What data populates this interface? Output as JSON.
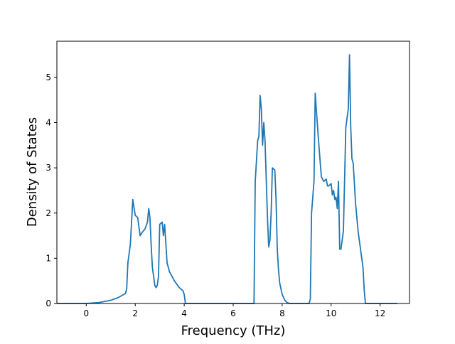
{
  "chart_data": {
    "type": "line",
    "title": "",
    "xlabel": "Frequency (THz)",
    "ylabel": "Density of States",
    "xlim": [
      -1.2,
      13.2
    ],
    "ylim": [
      0,
      5.8
    ],
    "x_ticks": [
      0,
      2,
      4,
      6,
      8,
      10,
      12
    ],
    "y_ticks": [
      0,
      1,
      2,
      3,
      4,
      5
    ],
    "grid": false,
    "legend": "none",
    "series": [
      {
        "color": "#1f77b4",
        "x": [
          -1.2,
          0.0,
          0.5,
          1.0,
          1.3,
          1.6,
          1.65,
          1.7,
          1.8,
          1.85,
          1.9,
          2.0,
          2.1,
          2.15,
          2.2,
          2.25,
          2.4,
          2.5,
          2.55,
          2.6,
          2.65,
          2.7,
          2.8,
          2.85,
          2.9,
          2.95,
          3.0,
          3.1,
          3.15,
          3.2,
          3.3,
          3.4,
          3.6,
          3.8,
          3.95,
          4.0,
          4.05,
          5.0,
          6.0,
          6.85,
          6.9,
          7.0,
          7.05,
          7.1,
          7.15,
          7.2,
          7.25,
          7.3,
          7.4,
          7.45,
          7.5,
          7.55,
          7.6,
          7.7,
          7.75,
          7.8,
          7.85,
          7.9,
          8.0,
          8.1,
          8.2,
          8.3,
          8.5,
          9.1,
          9.15,
          9.2,
          9.3,
          9.35,
          9.4,
          9.5,
          9.6,
          9.7,
          9.8,
          9.85,
          9.9,
          10.0,
          10.05,
          10.1,
          10.15,
          10.2,
          10.25,
          10.3,
          10.35,
          10.4,
          10.5,
          10.6,
          10.65,
          10.7,
          10.75,
          10.8,
          10.85,
          10.9,
          11.0,
          11.1,
          11.2,
          11.3,
          11.35,
          11.4,
          11.5,
          12.0,
          12.7
        ],
        "values": [
          0.0,
          0.0,
          0.02,
          0.07,
          0.13,
          0.22,
          0.32,
          0.9,
          1.3,
          1.8,
          2.3,
          1.95,
          1.9,
          1.7,
          1.5,
          1.55,
          1.65,
          1.8,
          2.1,
          1.9,
          1.3,
          0.8,
          0.4,
          0.35,
          0.4,
          0.6,
          1.75,
          1.8,
          1.5,
          1.75,
          0.9,
          0.7,
          0.5,
          0.35,
          0.28,
          0.2,
          0.0,
          0.0,
          0.0,
          0.0,
          2.7,
          3.6,
          3.7,
          4.6,
          4.3,
          3.5,
          4.0,
          3.6,
          1.9,
          1.25,
          1.4,
          2.0,
          3.0,
          2.95,
          2.3,
          1.2,
          0.75,
          0.45,
          0.2,
          0.08,
          0.02,
          0.0,
          0.0,
          0.0,
          0.1,
          2.0,
          2.7,
          4.65,
          4.25,
          3.5,
          2.8,
          2.7,
          2.75,
          2.6,
          2.6,
          2.65,
          2.4,
          2.5,
          2.3,
          2.35,
          2.1,
          2.7,
          1.2,
          1.2,
          1.6,
          3.9,
          4.1,
          4.3,
          5.5,
          3.9,
          3.2,
          3.1,
          2.2,
          1.6,
          1.2,
          0.8,
          0.3,
          0.0,
          0.0,
          0.0,
          0.0
        ]
      }
    ]
  }
}
